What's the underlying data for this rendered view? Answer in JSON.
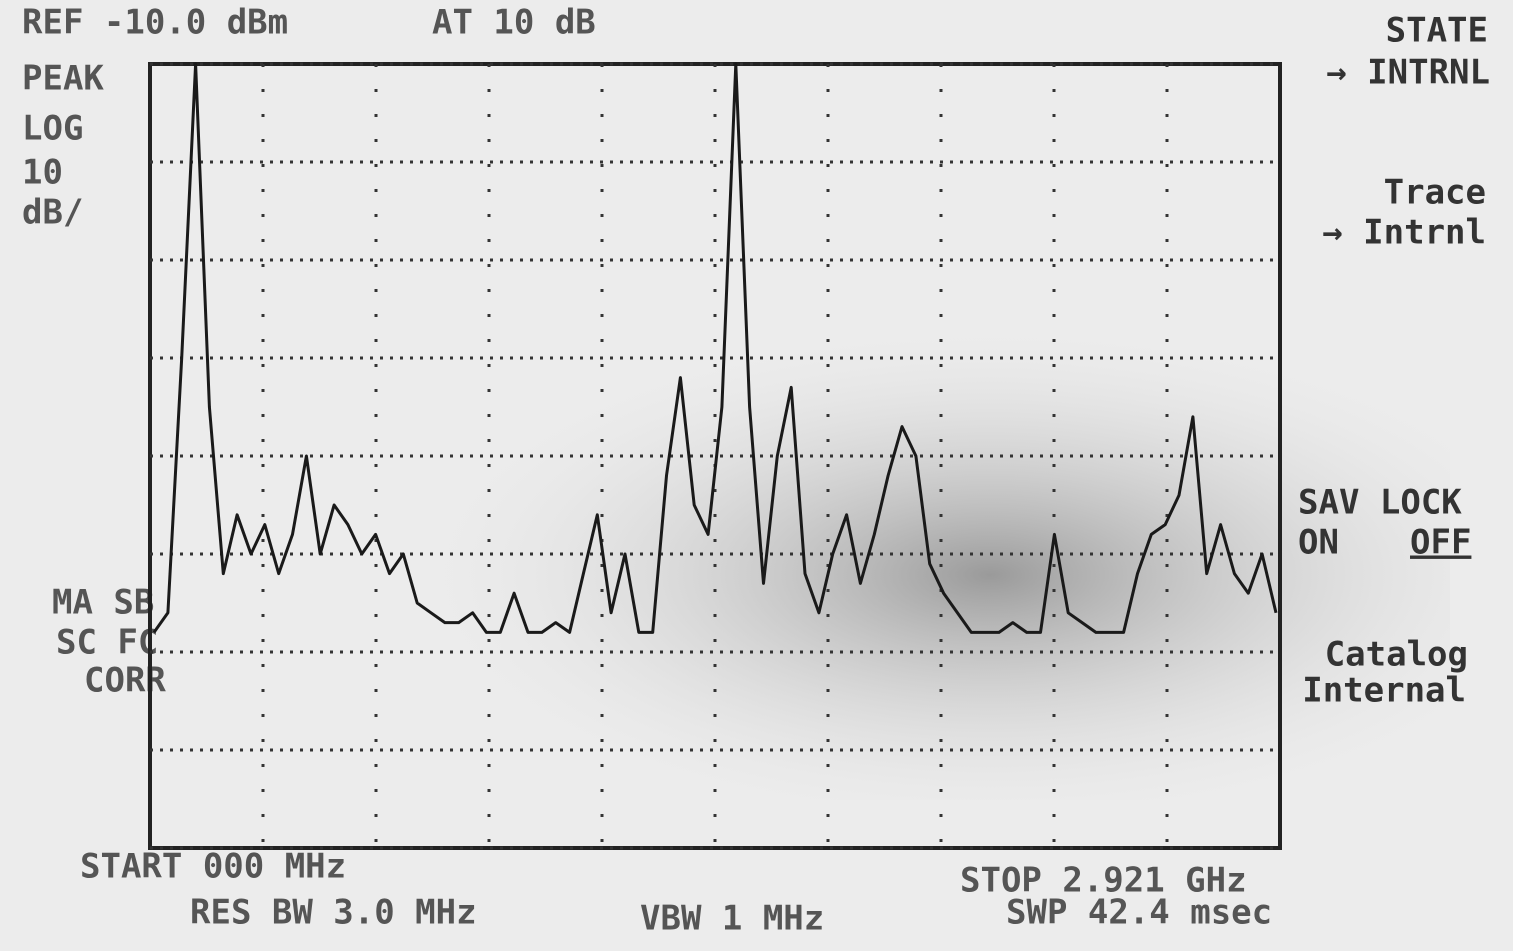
{
  "header": {
    "ref": "REF -10.0 dBm",
    "atten": "AT 10 dB"
  },
  "left_labels": [
    "PEAK",
    "LOG",
    "10",
    "dB/"
  ],
  "side_notes": [
    "MA SB",
    "SC FC",
    "CORR"
  ],
  "softkeys": {
    "state": "STATE",
    "state_target": "→ INTRNL",
    "trace": "Trace",
    "trace_target": "→ Intrnl",
    "sav_lock": "SAV LOCK",
    "on": "ON",
    "off": "OFF",
    "catalog": "Catalog",
    "internal": "Internal"
  },
  "footer": {
    "start": "START 000 MHz",
    "res_bw": "RES BW 3.0 MHz",
    "vbw": "VBW 1 MHz",
    "stop": "STOP 2.921 GHz",
    "sweep": "SWP 42.4 msec"
  },
  "chart_data": {
    "type": "line",
    "color": "#1a1a1a",
    "values": [
      -68,
      -66,
      -40,
      -10,
      -45,
      -62,
      -56,
      -60,
      -57,
      -62,
      -58,
      -50,
      -60,
      -55,
      -57,
      -60,
      -58,
      -62,
      -60,
      -65,
      -66,
      -67,
      -67,
      -66,
      -68,
      -68,
      -64,
      -68,
      -68,
      -67,
      -68,
      -62,
      -56,
      -66,
      -60,
      -68,
      -68,
      -52,
      -42,
      -55,
      -58,
      -45,
      -10,
      -45,
      -63,
      -50,
      -43,
      -62,
      -66,
      -60,
      -56,
      -63,
      -58,
      -52,
      -47,
      -50,
      -61,
      -64,
      -66,
      -68,
      -68,
      -68,
      -67,
      -68,
      -68,
      -58,
      -66,
      -67,
      -68,
      -68,
      -68,
      -62,
      -58,
      -57,
      -54,
      -46,
      -62,
      -57,
      -62,
      -64,
      -60,
      -66
    ],
    "ylim": [
      -90,
      -10
    ],
    "yticks": [
      -90,
      -80,
      -70,
      -60,
      -50,
      -40,
      -30,
      -20,
      -10
    ],
    "grid": true
  }
}
